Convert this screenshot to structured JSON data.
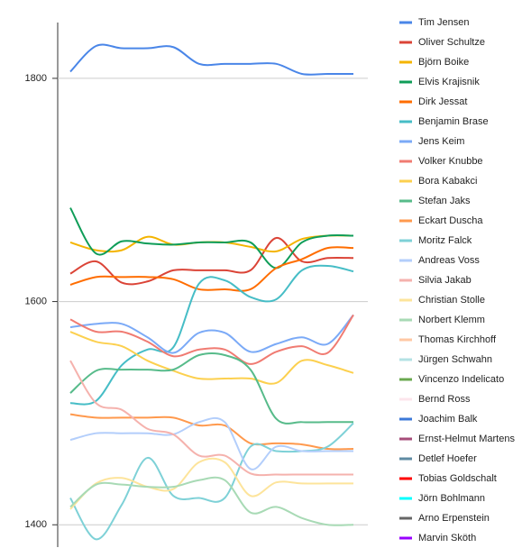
{
  "chart_data": {
    "type": "line",
    "categories": [
      null,
      null,
      null,
      null,
      null,
      null,
      null,
      null,
      null,
      null,
      null,
      null
    ],
    "ylim": [
      1380,
      1850
    ],
    "yticks": [
      1400,
      1600,
      1800
    ],
    "grid": true,
    "legend": "right",
    "series": [
      {
        "name": "Tim Jensen",
        "color": "#4a86e8",
        "values": [
          1806,
          1829,
          1827,
          1827,
          1828,
          1813,
          1813,
          1813,
          1813,
          1804,
          1804,
          1804
        ]
      },
      {
        "name": "Oliver Schultze",
        "color": "#db4437",
        "values": [
          1625,
          1636,
          1617,
          1618,
          1628,
          1628,
          1628,
          1628,
          1657,
          1636,
          1639,
          1639
        ]
      },
      {
        "name": "Björn Boike",
        "color": "#f4b400",
        "values": [
          1653,
          1646,
          1646,
          1658,
          1651,
          1653,
          1653,
          1649,
          1645,
          1656,
          1659,
          1659
        ]
      },
      {
        "name": "Elvis Krajisnik",
        "color": "#0f9d58",
        "values": [
          1684,
          1643,
          1654,
          1652,
          1651,
          1653,
          1653,
          1653,
          1630,
          1653,
          1659,
          1659
        ]
      },
      {
        "name": "Dirk Jessat",
        "color": "#ff6d00",
        "values": [
          1615,
          1622,
          1622,
          1622,
          1620,
          1611,
          1611,
          1611,
          1630,
          1638,
          1648,
          1648
        ]
      },
      {
        "name": "Benjamin Brase",
        "color": "#46bdc6",
        "values": [
          1509,
          1511,
          1543,
          1557,
          1559,
          1616,
          1619,
          1604,
          1602,
          1628,
          1632,
          1627
        ]
      },
      {
        "name": "Jens Keim",
        "color": "#7baaf7",
        "values": [
          1577,
          1580,
          1580,
          1568,
          1554,
          1572,
          1572,
          1555,
          1562,
          1568,
          1562,
          1588
        ]
      },
      {
        "name": "Volker Knubbe",
        "color": "#f07b72",
        "values": [
          1584,
          1573,
          1573,
          1564,
          1551,
          1557,
          1557,
          1544,
          1555,
          1560,
          1554,
          1588
        ]
      },
      {
        "name": "Bora Kabakci",
        "color": "#fcd04f",
        "values": [
          1573,
          1564,
          1560,
          1547,
          1538,
          1531,
          1531,
          1531,
          1527,
          1547,
          1543,
          1536
        ]
      },
      {
        "name": "Stefan Jaks",
        "color": "#57bb8a",
        "values": [
          1518,
          1538,
          1539,
          1539,
          1539,
          1552,
          1552,
          1539,
          1495,
          1492,
          1492,
          1492
        ]
      },
      {
        "name": "Eckart Duscha",
        "color": "#ff994d",
        "values": [
          1499,
          1496,
          1496,
          1496,
          1496,
          1489,
          1489,
          1473,
          1473,
          1472,
          1468,
          1468
        ]
      },
      {
        "name": "Moritz Falck",
        "color": "#7ed1d7",
        "values": [
          1424,
          1387,
          1418,
          1460,
          1426,
          1424,
          1424,
          1470,
          1466,
          1466,
          1470,
          1491
        ]
      },
      {
        "name": "Andreas Voss",
        "color": "#b3cefb",
        "values": [
          1476,
          1482,
          1482,
          1482,
          1481,
          1492,
          1492,
          1450,
          1470,
          1466,
          1466,
          1466
        ]
      },
      {
        "name": "Silvia Jakab",
        "color": "#f5b2ad",
        "values": [
          1547,
          1509,
          1503,
          1486,
          1481,
          1462,
          1462,
          1446,
          1445,
          1445,
          1445,
          1445
        ]
      },
      {
        "name": "Christian Stolle",
        "color": "#fde49b",
        "values": [
          1414,
          1437,
          1442,
          1434,
          1432,
          1456,
          1456,
          1426,
          1438,
          1437,
          1437,
          1437
        ]
      },
      {
        "name": "Norbert Klemm",
        "color": "#a8dab5",
        "values": [
          1416,
          1436,
          1436,
          1434,
          1434,
          1440,
          1440,
          1411,
          1416,
          1406,
          1400,
          1400
        ]
      },
      {
        "name": "Thomas Kirchhoff",
        "color": "#ffc8a4",
        "values": [
          null,
          null,
          null,
          null,
          null,
          null,
          null,
          null,
          null,
          null,
          null,
          null
        ]
      },
      {
        "name": "Jürgen Schwahn",
        "color": "#b4e2e4",
        "values": [
          null,
          null,
          null,
          null,
          null,
          null,
          null,
          null,
          null,
          null,
          null,
          null
        ]
      },
      {
        "name": "Vincenzo Indelicato",
        "color": "#6aa84f",
        "values": [
          null,
          null,
          null,
          null,
          null,
          null,
          null,
          null,
          null,
          null,
          null,
          null
        ]
      },
      {
        "name": "Bernd Ross",
        "color": "#fce5ec",
        "values": [
          null,
          null,
          null,
          null,
          null,
          null,
          null,
          null,
          null,
          null,
          null,
          null
        ]
      },
      {
        "name": "Joachim Balk",
        "color": "#3c78d8",
        "values": [
          null,
          null,
          null,
          null,
          null,
          null,
          null,
          null,
          null,
          null,
          null,
          null
        ]
      },
      {
        "name": "Ernst-Helmut Martens",
        "color": "#a64d79",
        "values": [
          null,
          null,
          null,
          null,
          null,
          null,
          null,
          null,
          null,
          null,
          null,
          null
        ]
      },
      {
        "name": "Detlef Hoefer",
        "color": "#5f8ba3",
        "values": [
          null,
          null,
          null,
          null,
          null,
          null,
          null,
          null,
          null,
          null,
          null,
          null
        ]
      },
      {
        "name": "Tobias Goldschalt",
        "color": "#ff0000",
        "values": [
          null,
          null,
          null,
          null,
          null,
          null,
          null,
          null,
          null,
          null,
          null,
          null
        ]
      },
      {
        "name": "Jörn Bohlmann",
        "color": "#00ffff",
        "values": [
          null,
          null,
          null,
          null,
          null,
          null,
          null,
          null,
          null,
          null,
          null,
          null
        ]
      },
      {
        "name": "Arno Erpenstein",
        "color": "#666666",
        "values": [
          null,
          null,
          null,
          null,
          null,
          null,
          null,
          null,
          null,
          null,
          null,
          null
        ]
      },
      {
        "name": "Marvin Sköth",
        "color": "#9900ff",
        "values": [
          null,
          null,
          null,
          null,
          null,
          null,
          null,
          null,
          null,
          null,
          null,
          null
        ]
      }
    ]
  }
}
